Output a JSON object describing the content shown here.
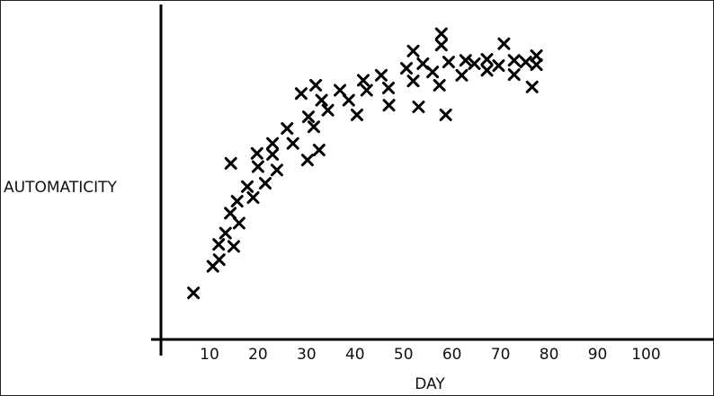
{
  "chart_data": {
    "type": "scatter",
    "x_label": "DAY",
    "y_label": "AUTOMATICITY",
    "xlim": [
      0,
      114
    ],
    "ylim": [
      0,
      100
    ],
    "xticks": [
      10,
      20,
      30,
      40,
      50,
      60,
      70,
      80,
      90,
      100
    ],
    "color": "#000000",
    "marker": "x",
    "x": [
      6.7,
      10.7,
      12,
      11.9,
      13.3,
      15,
      16.1,
      14.3,
      15.7,
      17.8,
      19,
      20,
      19.8,
      14.4,
      21.5,
      23,
      23.9,
      23,
      26,
      27.2,
      28.9,
      30.4,
      30.2,
      31.5,
      32.6,
      31.9,
      33.1,
      34.4,
      36.9,
      38.7,
      40.4,
      41.7,
      42.4,
      45.4,
      46.9,
      47,
      50.6,
      52,
      52,
      53.1,
      54,
      56,
      57.4,
      57.8,
      57.8,
      58.7,
      59.3,
      62,
      62.8,
      64.6,
      67.2,
      67.2,
      69.6,
      70.7,
      72.8,
      72.8,
      75.2,
      76.5,
      77.4,
      77.4
    ],
    "y": [
      14,
      22,
      24,
      28.6,
      32,
      28,
      35,
      38,
      41.6,
      46,
      42.7,
      52,
      56,
      53,
      47,
      55.7,
      51,
      59,
      63.5,
      59,
      74,
      67,
      54,
      64,
      57,
      76.5,
      72,
      69,
      75,
      72,
      67.6,
      78,
      75,
      79.5,
      75.7,
      70.5,
      81.6,
      77.8,
      86.8,
      70,
      83,
      80.5,
      76.5,
      92,
      88.6,
      67.6,
      83.5,
      79.5,
      84,
      83,
      84.3,
      81,
      82.4,
      89,
      79.7,
      84,
      83.5,
      76,
      85.4,
      82.7
    ]
  }
}
